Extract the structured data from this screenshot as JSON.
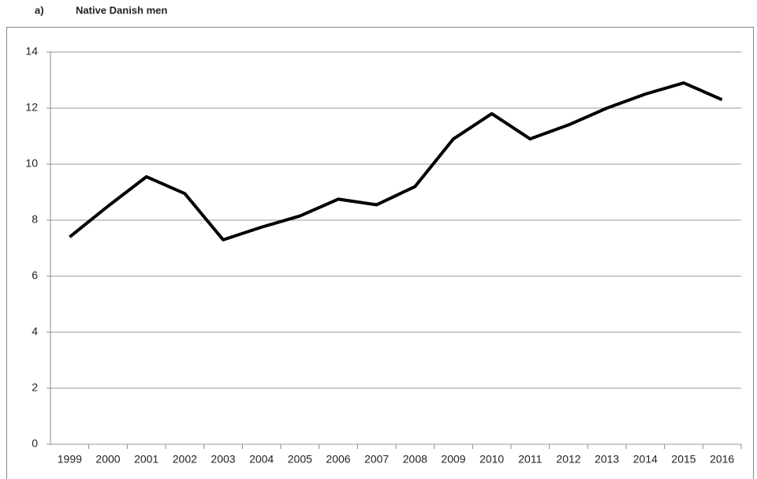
{
  "chart_data": {
    "type": "line",
    "panel_label": "a)",
    "title": "Native Danish men",
    "categories": [
      "1999",
      "2000",
      "2001",
      "2002",
      "2003",
      "2004",
      "2005",
      "2006",
      "2007",
      "2008",
      "2009",
      "2010",
      "2011",
      "2012",
      "2013",
      "2014",
      "2015",
      "2016"
    ],
    "series": [
      {
        "name": "Native Danish men",
        "color": "#000000",
        "values": [
          7.4,
          8.5,
          9.55,
          8.95,
          7.3,
          7.75,
          8.15,
          8.75,
          8.55,
          9.2,
          10.9,
          11.8,
          10.9,
          11.4,
          12.0,
          12.5,
          12.9,
          12.3
        ]
      }
    ],
    "ylim": [
      0,
      14
    ],
    "yticks": [
      0,
      2,
      4,
      6,
      8,
      10,
      12,
      14
    ],
    "grid": true
  }
}
